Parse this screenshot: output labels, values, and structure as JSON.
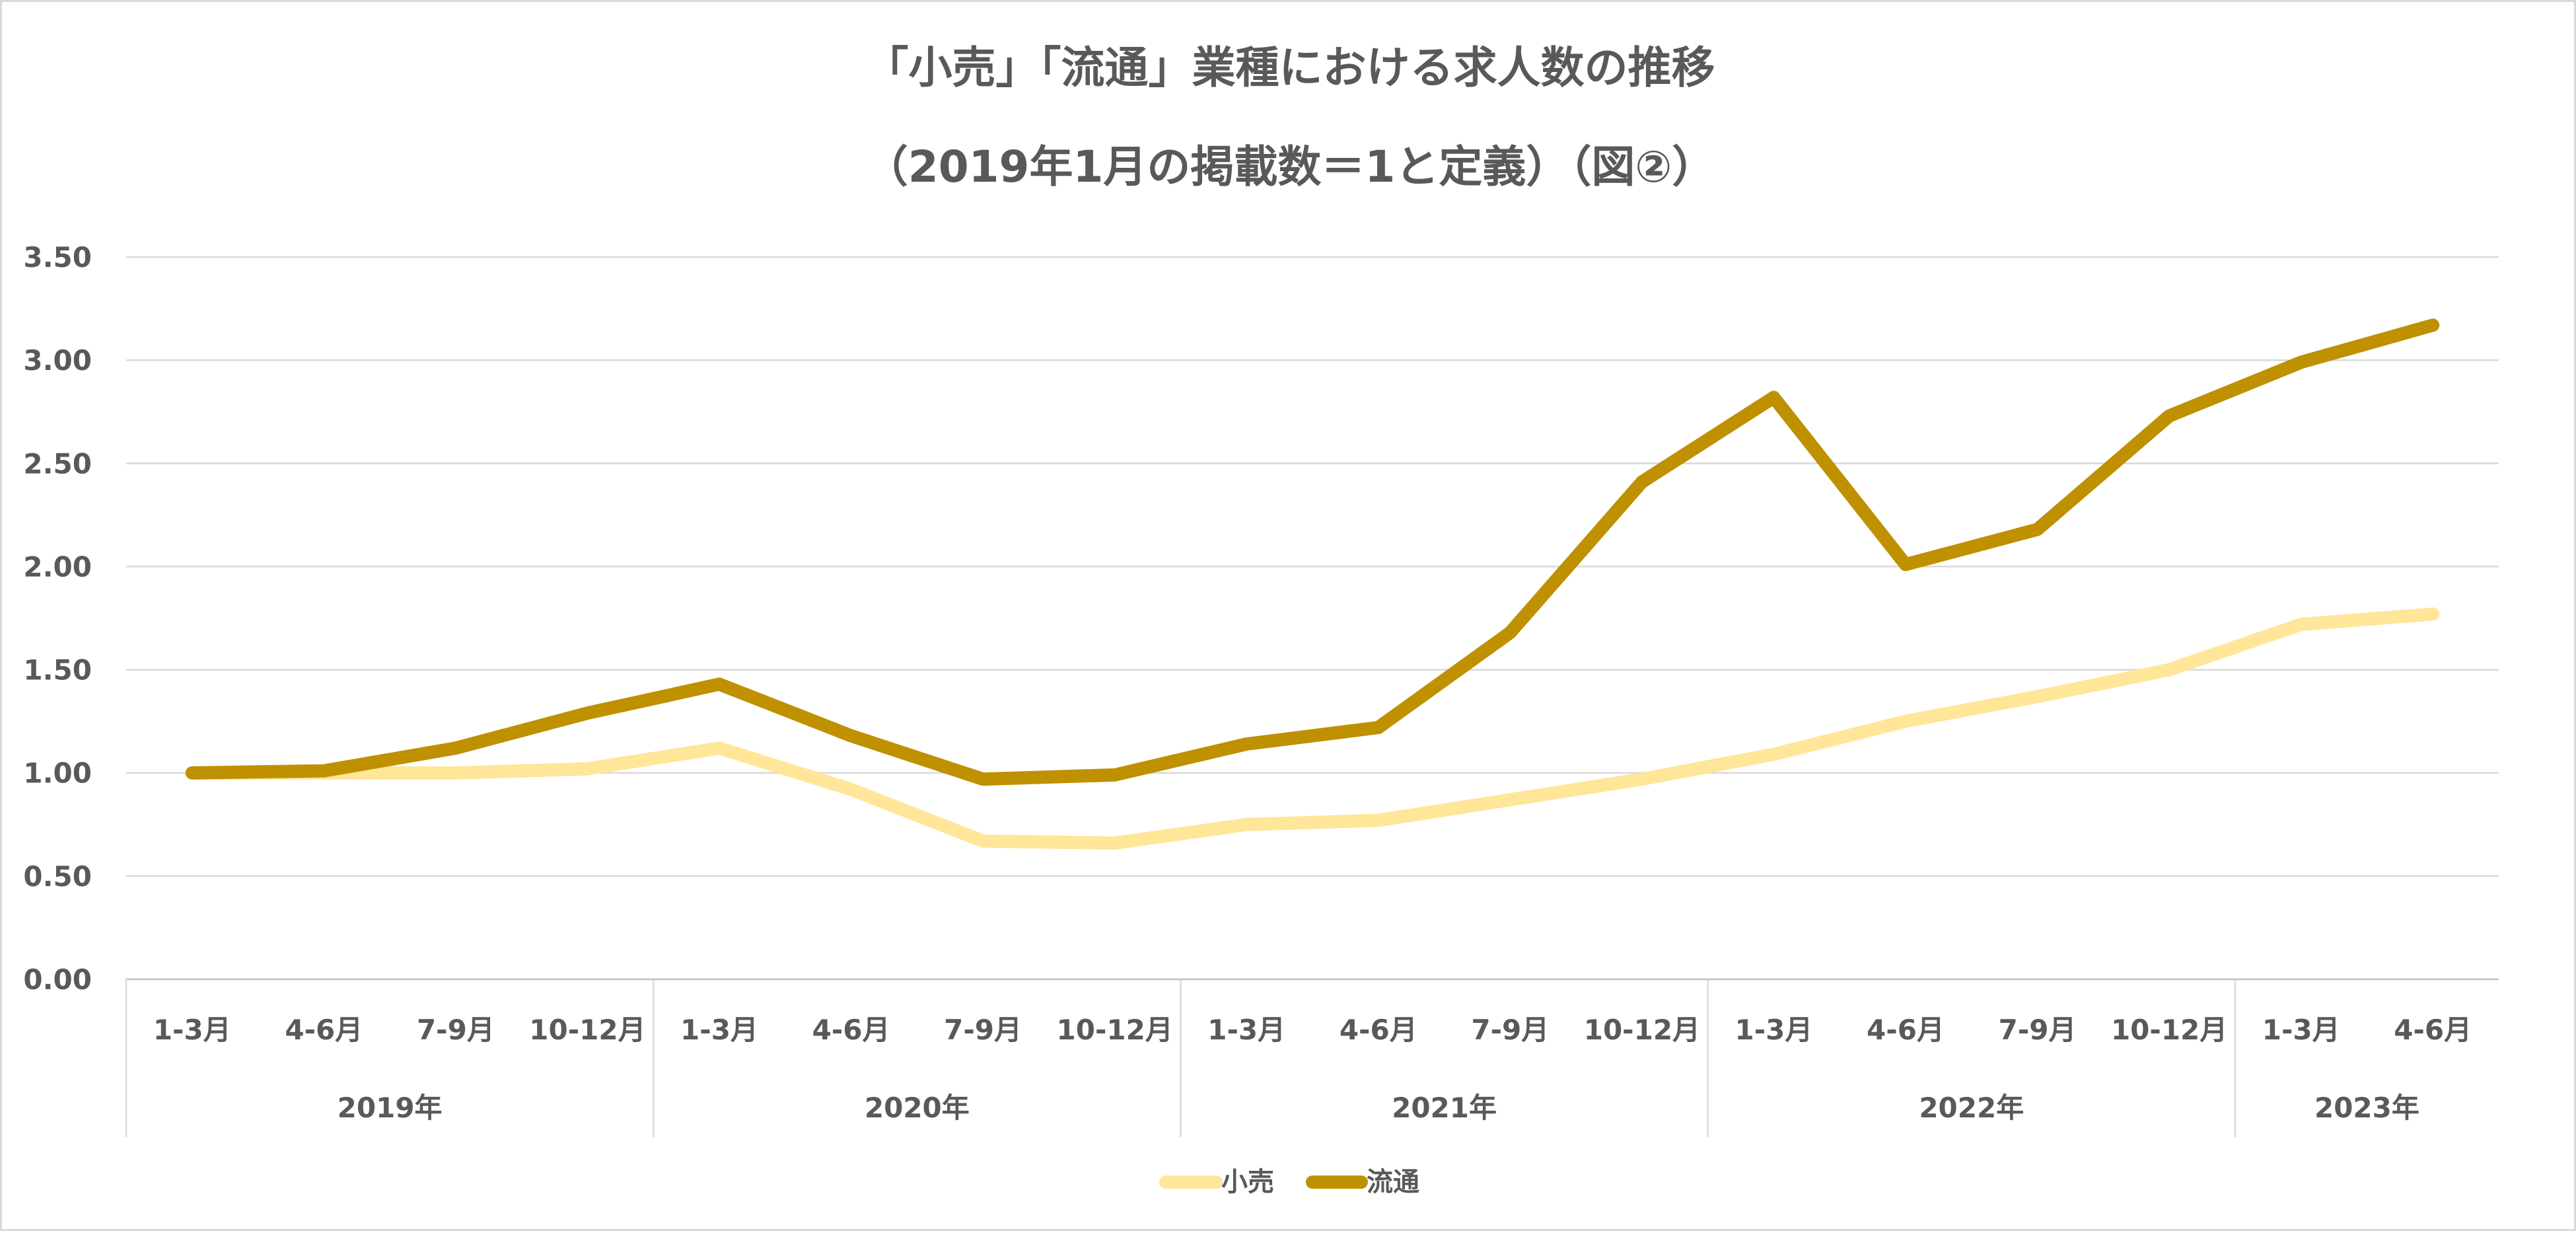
{
  "chart_data": {
    "type": "line",
    "title_line1": "「小売」「流通」業種における求人数の推移",
    "title_line2": "（2019年1月の掲載数＝1と定義）（図②）",
    "categories": [
      "1-3月",
      "4-6月",
      "7-9月",
      "10-12月",
      "1-3月",
      "4-6月",
      "7-9月",
      "10-12月",
      "1-3月",
      "4-6月",
      "7-9月",
      "10-12月",
      "1-3月",
      "4-6月",
      "7-9月",
      "10-12月",
      "1-3月",
      "4-6月"
    ],
    "year_groups": [
      {
        "label": "2019年",
        "count": 4
      },
      {
        "label": "2020年",
        "count": 4
      },
      {
        "label": "2021年",
        "count": 4
      },
      {
        "label": "2022年",
        "count": 4
      },
      {
        "label": "2023年",
        "count": 2
      }
    ],
    "series": [
      {
        "name": "小売",
        "color": "#ffe699",
        "values": [
          1.0,
          1.0,
          1.0,
          1.02,
          1.12,
          0.92,
          0.67,
          0.66,
          0.75,
          0.77,
          0.87,
          0.97,
          1.09,
          1.25,
          1.37,
          1.5,
          1.72,
          1.77
        ]
      },
      {
        "name": "流通",
        "color": "#bf9000",
        "values": [
          1.0,
          1.01,
          1.12,
          1.29,
          1.43,
          1.18,
          0.97,
          0.99,
          1.14,
          1.22,
          1.68,
          2.41,
          2.82,
          2.01,
          2.18,
          2.73,
          2.99,
          3.17
        ]
      }
    ],
    "yticks": [
      "0.00",
      "0.50",
      "1.00",
      "1.50",
      "2.00",
      "2.50",
      "3.00",
      "3.50"
    ],
    "ylim": [
      0,
      3.5
    ],
    "grid": true,
    "legend_position": "bottom"
  }
}
